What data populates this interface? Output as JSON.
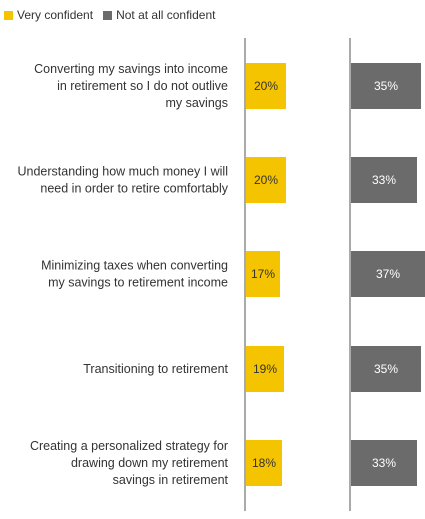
{
  "chart_data": {
    "type": "bar",
    "orientation": "horizontal",
    "legend_position": "top-left",
    "grid": false,
    "categories": [
      [
        "Converting my savings into income",
        "in retirement so I do not outlive",
        "my savings"
      ],
      [
        "Understanding how much money I will",
        "need in order to retire comfortably"
      ],
      [
        "Minimizing taxes when converting",
        "my savings to retirement income"
      ],
      [
        "Transitioning to retirement"
      ],
      [
        "Creating a personalized strategy for",
        "drawing down my retirement",
        "savings in retirement"
      ]
    ],
    "series": [
      {
        "name": "Very confident",
        "color": "#F5C400",
        "label_color": "#333333",
        "values": [
          20,
          20,
          17,
          19,
          18
        ],
        "labels": [
          "20%",
          "20%",
          "17%",
          "19%",
          "18%"
        ]
      },
      {
        "name": "Not at all confident",
        "color": "#6B6B6B",
        "label_color": "#ffffff",
        "values": [
          35,
          33,
          37,
          35,
          33
        ],
        "labels": [
          "35%",
          "33%",
          "37%",
          "35%",
          "33%"
        ]
      }
    ],
    "axis_color": "#555555"
  }
}
